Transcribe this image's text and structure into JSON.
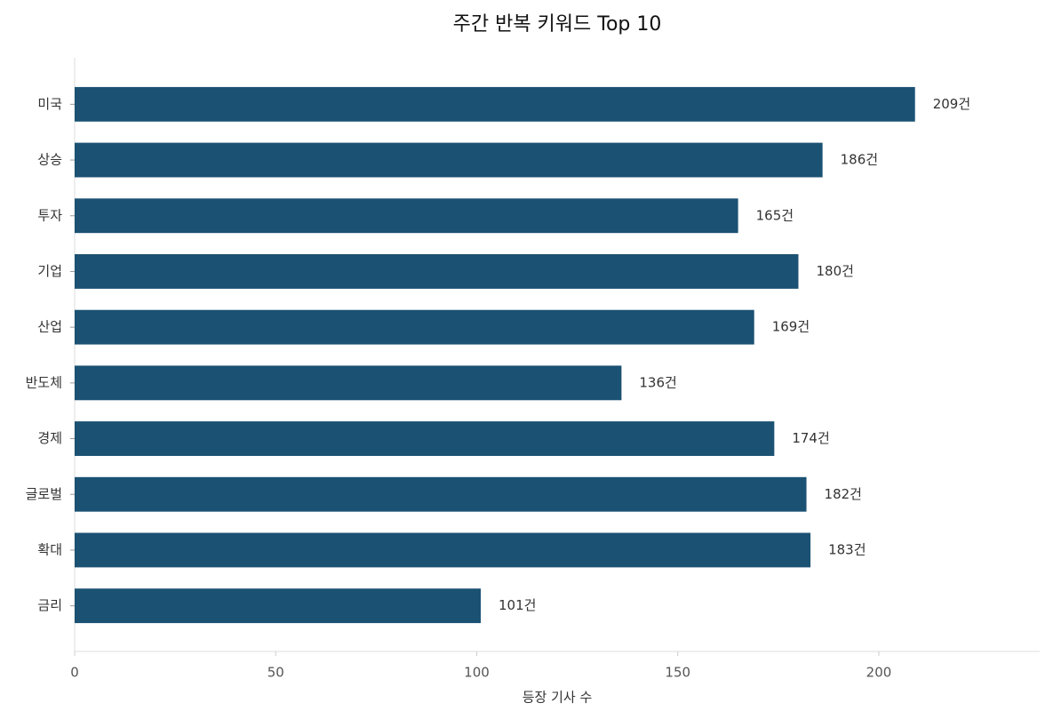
{
  "chart_data": {
    "type": "bar",
    "orientation": "horizontal",
    "title": "주간 반복 키워드 Top 10",
    "x_label": "등장 기사 수",
    "categories": [
      "미국",
      "상승",
      "투자",
      "기업",
      "산업",
      "반도체",
      "경제",
      "글로벌",
      "확대",
      "금리"
    ],
    "values": [
      209,
      186,
      165,
      180,
      169,
      136,
      174,
      182,
      183,
      101
    ],
    "value_labels": [
      "209건",
      "186건",
      "165건",
      "180건",
      "169건",
      "136건",
      "174건",
      "182건",
      "183건",
      "101건"
    ],
    "color": "#1b5173",
    "xlim": [
      0,
      240
    ],
    "xticks": [
      0,
      50,
      100,
      150,
      200
    ],
    "grid": false
  }
}
